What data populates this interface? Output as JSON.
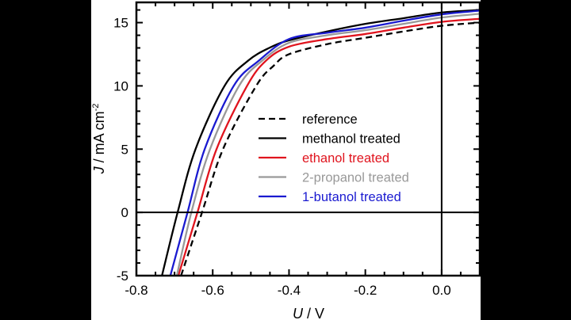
{
  "chart_data": {
    "type": "line",
    "title": "",
    "xlabel_italic": "U",
    "xlabel_unit": " / V",
    "ylabel_italic": "J",
    "ylabel_unit": " / mA cm",
    "ylabel_sup": "-2",
    "xlim": [
      -0.8,
      0.1
    ],
    "ylim": [
      -5,
      16.6
    ],
    "xticks": [
      -0.8,
      -0.6,
      -0.4,
      -0.2,
      0.0
    ],
    "xtick_labels": [
      "-0.8",
      "-0.6",
      "-0.4",
      "-0.2",
      "0.0"
    ],
    "yticks": [
      -5,
      0,
      5,
      10,
      15
    ],
    "ytick_labels": [
      "-5",
      "0",
      "5",
      "10",
      "15"
    ],
    "grid": false,
    "reference_lines": {
      "x": 0,
      "y": 0
    },
    "legend_position": "center-right",
    "series": [
      {
        "name": "reference",
        "color": "#000000",
        "dash": true,
        "x": [
          -0.683,
          -0.628,
          -0.573,
          -0.486,
          -0.44,
          -0.4,
          -0.3,
          -0.2,
          -0.1,
          0.0,
          0.1
        ],
        "y": [
          -5,
          0,
          5,
          10,
          11.6,
          12.5,
          13.3,
          13.8,
          14.3,
          14.75,
          15.0
        ]
      },
      {
        "name": "methanol treated",
        "color": "#000000",
        "dash": false,
        "x": [
          -0.733,
          -0.692,
          -0.645,
          -0.569,
          -0.507,
          -0.452,
          -0.4,
          -0.3,
          -0.2,
          -0.1,
          0.0,
          0.1
        ],
        "y": [
          -5,
          0,
          5,
          10,
          12,
          13,
          13.6,
          14.3,
          14.9,
          15.35,
          15.8,
          16.0
        ]
      },
      {
        "name": "ethanol treated",
        "color": "#e0141e",
        "dash": false,
        "x": [
          -0.69,
          -0.64,
          -0.59,
          -0.51,
          -0.46,
          -0.4,
          -0.3,
          -0.2,
          -0.1,
          0.0,
          0.1
        ],
        "y": [
          -5,
          0,
          5,
          10,
          12,
          13.1,
          13.7,
          14.1,
          14.6,
          15.06,
          15.3
        ]
      },
      {
        "name": "2-propanol treated",
        "color": "#999999",
        "dash": false,
        "x": [
          -0.694,
          -0.656,
          -0.607,
          -0.531,
          -0.47,
          -0.4,
          -0.3,
          -0.2,
          -0.1,
          0.0,
          0.1
        ],
        "y": [
          -5,
          0,
          5,
          10,
          12,
          13.4,
          14.0,
          14.4,
          14.9,
          15.4,
          15.7
        ]
      },
      {
        "name": "1-butanol treated",
        "color": "#1a1ad0",
        "dash": false,
        "x": [
          -0.711,
          -0.666,
          -0.621,
          -0.545,
          -0.479,
          -0.4,
          -0.3,
          -0.2,
          -0.1,
          0.0,
          0.1
        ],
        "y": [
          -5,
          0,
          5,
          10,
          12,
          13.7,
          14.2,
          14.6,
          15.15,
          15.65,
          15.95
        ]
      }
    ]
  }
}
